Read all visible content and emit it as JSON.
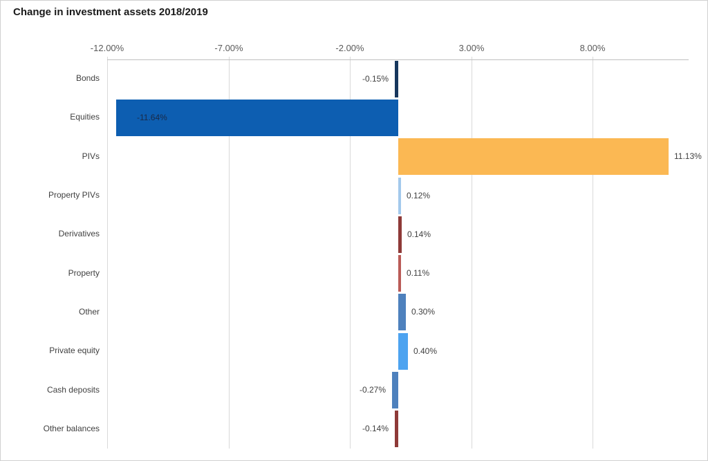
{
  "title": "Change in investment assets 2018/2019",
  "chart_data": {
    "type": "bar",
    "orientation": "horizontal",
    "title": "Change in investment assets 2018/2019",
    "categories": [
      "Bonds",
      "Equities",
      "PIVs",
      "Property PIVs",
      "Derivatives",
      "Property",
      "Other",
      "Private equity",
      "Cash deposits",
      "Other balances"
    ],
    "values": [
      -0.15,
      -11.64,
      11.13,
      0.12,
      0.14,
      0.11,
      0.3,
      0.4,
      -0.27,
      -0.14
    ],
    "data_labels": [
      "-0.15%",
      "-11.64%",
      "11.13%",
      "0.12%",
      "0.14%",
      "0.11%",
      "0.30%",
      "0.40%",
      "-0.27%",
      "-0.14%"
    ],
    "bar_colors": [
      "#17375D",
      "#0D5EB1",
      "#FBB853",
      "#A3C9EC",
      "#8E3A38",
      "#BA5B57",
      "#4E81BD",
      "#4DA3F0",
      "#4E81BD",
      "#8E3A38"
    ],
    "x_ticks": [
      {
        "value": -12,
        "label": "-12.00%"
      },
      {
        "value": -7,
        "label": "-7.00%"
      },
      {
        "value": -2,
        "label": "-2.00%"
      },
      {
        "value": 3,
        "label": "3.00%"
      },
      {
        "value": 8,
        "label": "8.00%"
      }
    ],
    "xlim": [
      -12,
      11.96
    ],
    "grid": true,
    "legend": false,
    "axis_position": "top",
    "value_suffix": "%"
  },
  "styles": {
    "gridline_color": "#D9D9D9",
    "axis_line_color": "#BFBFBF",
    "tick_label_color": "#595959",
    "category_label_color": "#404040",
    "data_label_color": "#3F3F3F",
    "inside_label_color": "#1A2A47"
  }
}
